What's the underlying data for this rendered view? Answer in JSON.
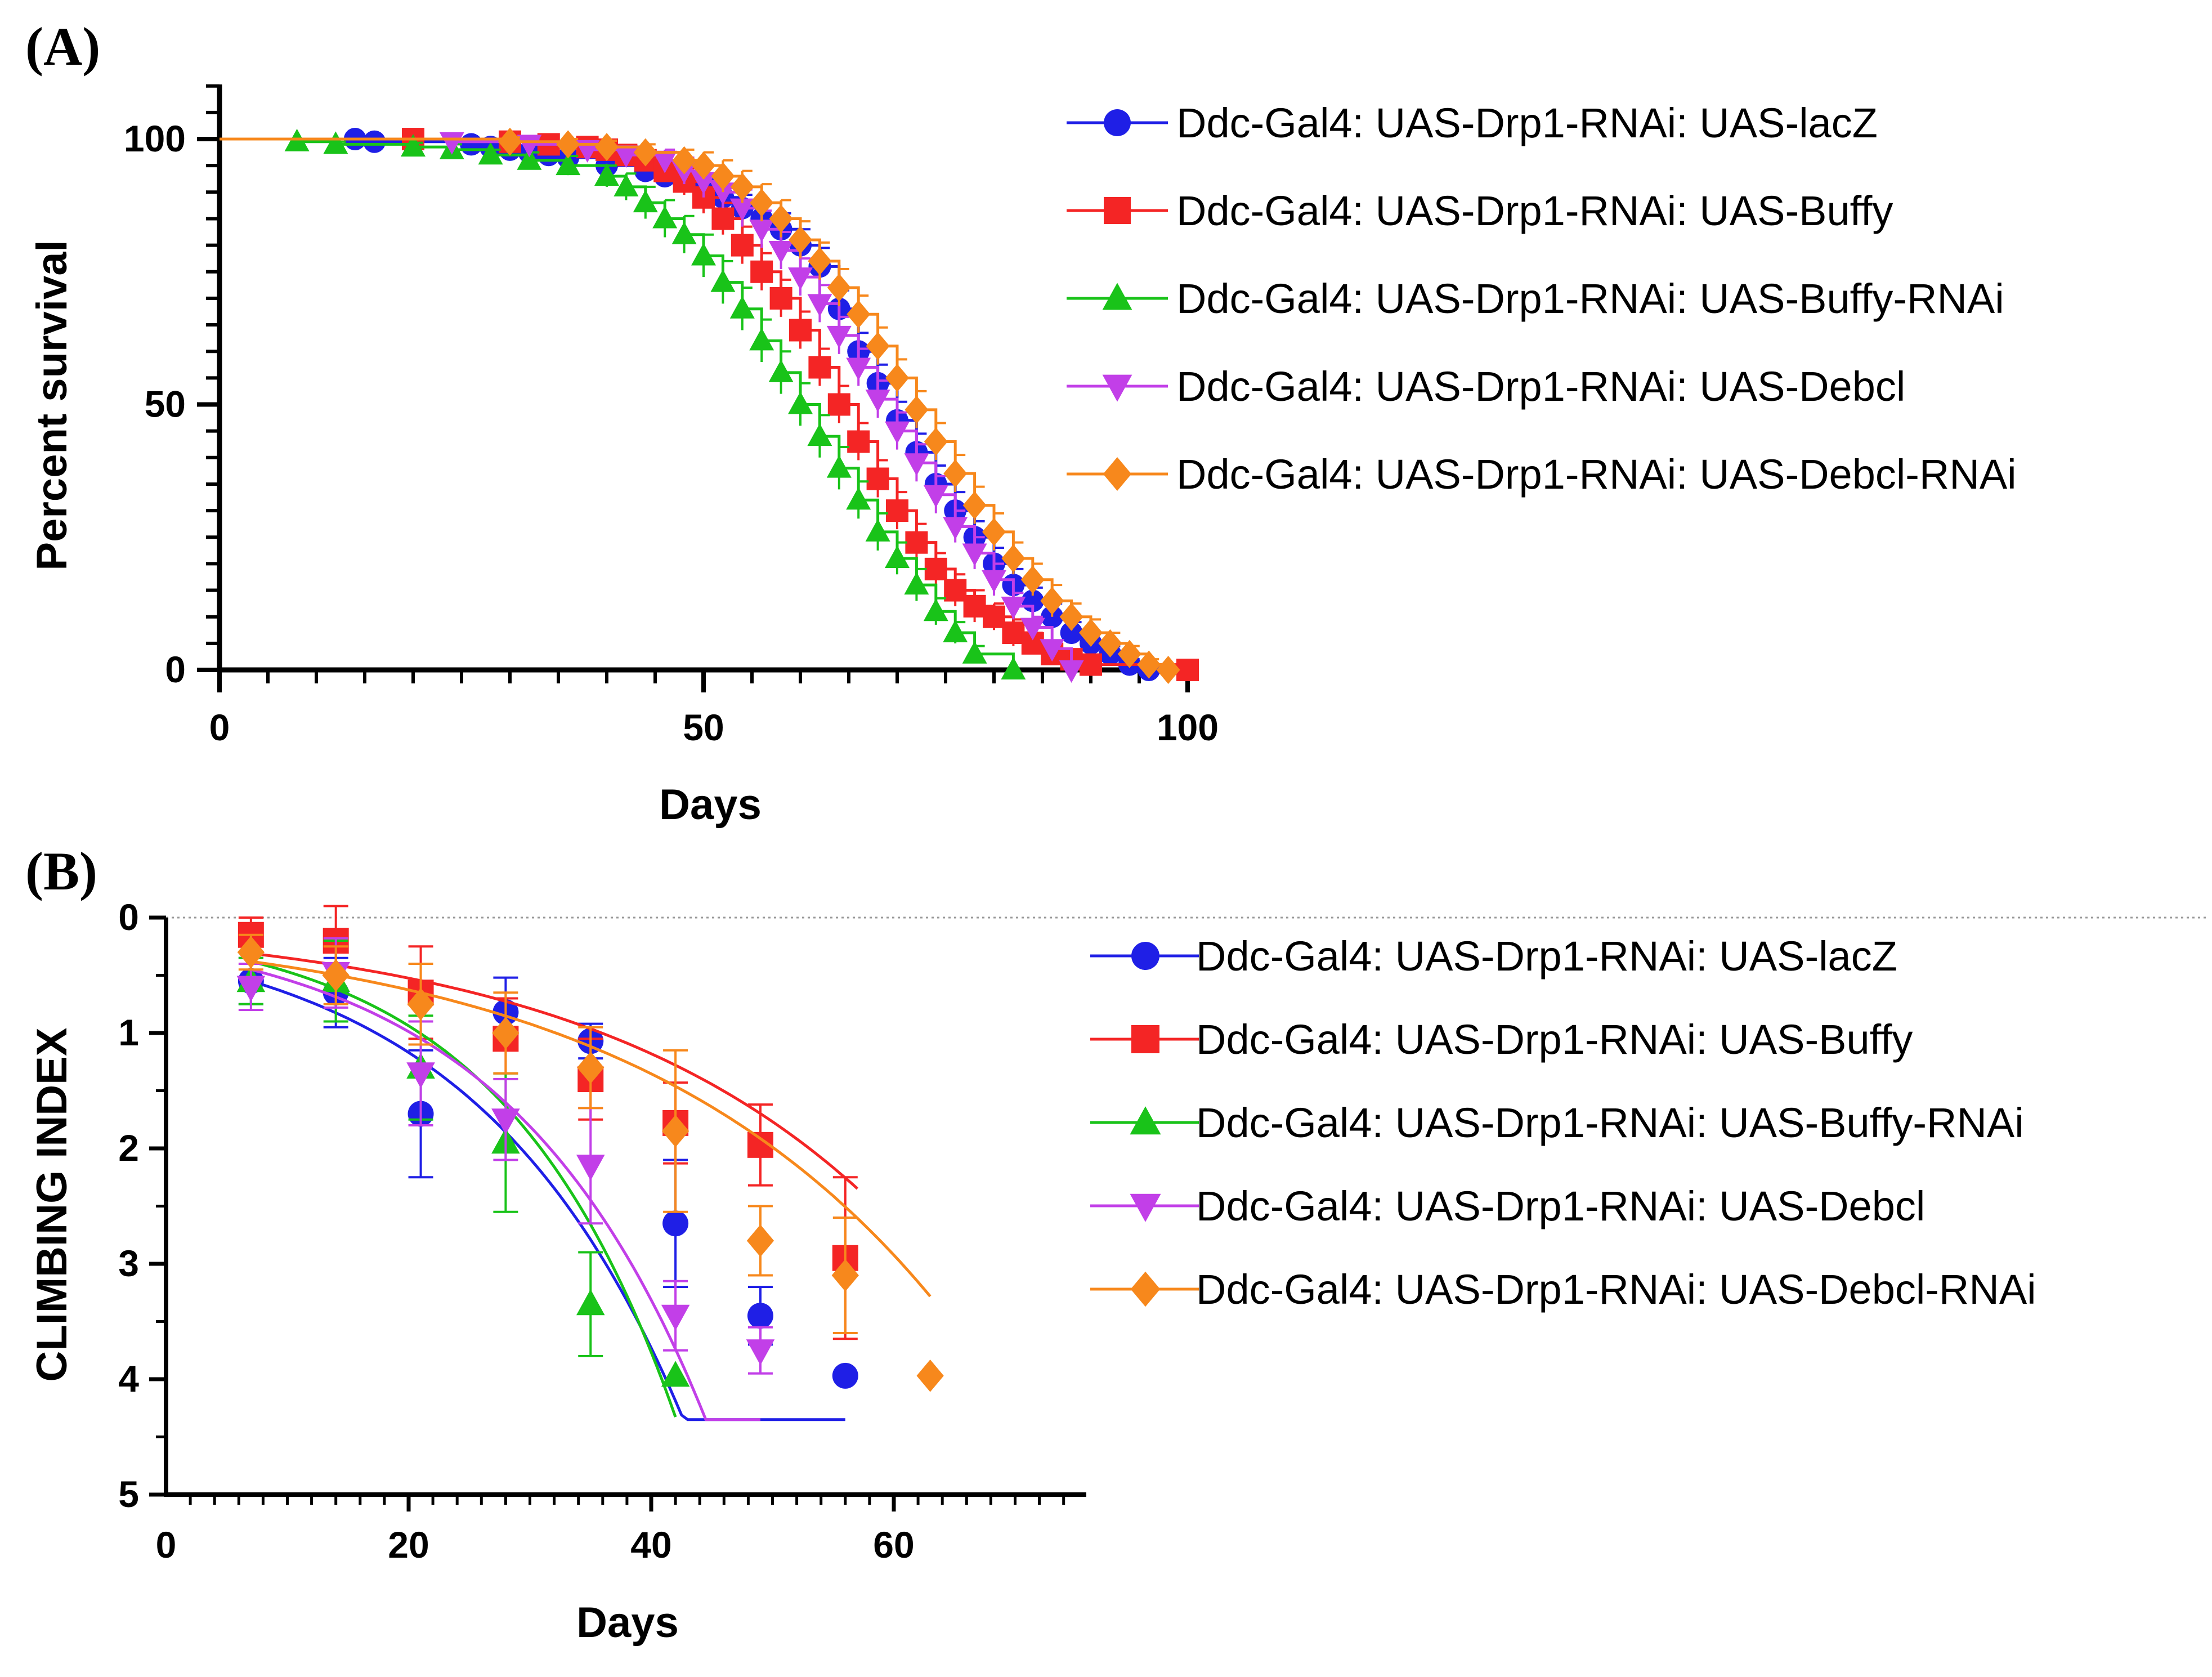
{
  "chart_data": [
    {
      "id": "A",
      "panel_label": "(A)",
      "type": "line",
      "subtype": "kaplan-meier-survival",
      "title": "",
      "xlabel": "Days",
      "ylabel": "Percent survival",
      "xlim": [
        0,
        100
      ],
      "ylim": [
        0,
        110
      ],
      "xticks": [
        0,
        50,
        100
      ],
      "yticks": [
        0,
        50,
        100
      ],
      "grid": false,
      "legend_position": "right",
      "series": [
        {
          "name": "Ddc-Gal4: UAS-Drp1-RNAi: UAS-lacZ",
          "color": "#1f1fe6",
          "marker": "circle",
          "x": [
            0,
            14,
            16,
            26,
            28,
            30,
            32,
            34,
            36,
            40,
            44,
            46,
            48,
            50,
            52,
            54,
            56,
            58,
            60,
            62,
            64,
            66,
            68,
            70,
            72,
            74,
            76,
            78,
            80,
            82,
            84,
            86,
            88,
            90,
            92,
            94,
            96
          ],
          "y": [
            100,
            100,
            99.5,
            99,
            98.5,
            98,
            97.5,
            97,
            96.5,
            95,
            94,
            93,
            92,
            90.5,
            89,
            87,
            85,
            83,
            80,
            76,
            68,
            60,
            54,
            47,
            41,
            35,
            30,
            25,
            20,
            16,
            13,
            10,
            7,
            5,
            3,
            1,
            0
          ],
          "err": [
            0,
            0.5,
            0.5,
            0.8,
            0.8,
            1,
            1,
            1,
            1,
            1.5,
            1.5,
            2,
            2,
            2,
            2.5,
            2.5,
            3,
            3,
            3,
            3.5,
            3.5,
            3.5,
            3.5,
            3.5,
            3.5,
            3.5,
            3.5,
            3,
            3,
            3,
            2.5,
            2.5,
            2,
            2,
            1.5,
            1,
            0
          ]
        },
        {
          "name": "Ddc-Gal4: UAS-Drp1-RNAi: UAS-Buffy",
          "color": "#f42525",
          "marker": "square",
          "x": [
            0,
            20,
            30,
            34,
            38,
            40,
            42,
            44,
            46,
            48,
            50,
            52,
            54,
            56,
            58,
            60,
            62,
            64,
            66,
            68,
            70,
            72,
            74,
            76,
            78,
            80,
            82,
            84,
            86,
            88,
            90,
            100
          ],
          "y": [
            100,
            100,
            99.5,
            99,
            98.5,
            98,
            97,
            96,
            94,
            92,
            89,
            85,
            80,
            75,
            70,
            64,
            57,
            50,
            43,
            36,
            30,
            24,
            19,
            15,
            12,
            10,
            7,
            5,
            3,
            2,
            1,
            0
          ],
          "err": [
            0,
            0.5,
            0.8,
            1,
            1,
            1.2,
            1.5,
            1.8,
            2,
            2.5,
            3,
            3,
            3.5,
            3.5,
            3.5,
            3.5,
            3.5,
            3.5,
            3.5,
            3.5,
            3.5,
            3.5,
            3,
            3,
            3,
            2.5,
            2.5,
            2,
            2,
            1.5,
            1,
            0
          ]
        },
        {
          "name": "Ddc-Gal4: UAS-Drp1-RNAi: UAS-Buffy-RNAi",
          "color": "#19c319",
          "marker": "triangle-up",
          "x": [
            0,
            8,
            12,
            20,
            24,
            28,
            32,
            36,
            40,
            42,
            44,
            46,
            48,
            50,
            52,
            54,
            56,
            58,
            60,
            62,
            64,
            66,
            68,
            70,
            72,
            74,
            76,
            78,
            82
          ],
          "y": [
            100,
            99.5,
            99,
            98.5,
            98,
            97,
            96,
            95,
            93,
            91,
            88,
            85,
            82,
            78,
            73,
            68,
            62,
            56,
            50,
            44,
            38,
            32,
            26,
            21,
            16,
            11,
            7,
            3,
            0
          ],
          "err": [
            0,
            0.5,
            0.5,
            0.8,
            1,
            1,
            1.5,
            1.8,
            2,
            2.5,
            3,
            3.5,
            3.5,
            4,
            4,
            4,
            4,
            4,
            4,
            4,
            4,
            3.5,
            3.5,
            3,
            3,
            2.5,
            2,
            1.5,
            0
          ]
        },
        {
          "name": "Ddc-Gal4: UAS-Drp1-RNAi: UAS-Debcl",
          "color": "#c23fe8",
          "marker": "triangle-down",
          "x": [
            0,
            24,
            32,
            38,
            42,
            46,
            48,
            50,
            52,
            54,
            56,
            58,
            60,
            62,
            64,
            66,
            68,
            70,
            72,
            74,
            76,
            78,
            80,
            82,
            84,
            86,
            88
          ],
          "y": [
            100,
            99.5,
            99,
            98,
            97,
            96,
            94,
            92,
            90,
            87,
            83,
            79,
            74,
            69,
            63,
            57,
            51,
            45,
            39,
            33,
            27,
            22,
            17,
            12,
            8,
            4,
            0
          ],
          "err": [
            0,
            0.5,
            0.8,
            1,
            1.5,
            2,
            2.5,
            3,
            3,
            3.5,
            3.5,
            3.5,
            3.5,
            3.5,
            3.5,
            3.5,
            3.5,
            3.5,
            3.5,
            3.5,
            3,
            3,
            3,
            2.5,
            2,
            1.5,
            0
          ]
        },
        {
          "name": "Ddc-Gal4: UAS-Drp1-RNAi: UAS-Debcl-RNAi",
          "color": "#f7881c",
          "marker": "diamond",
          "x": [
            0,
            30,
            36,
            40,
            44,
            48,
            50,
            52,
            54,
            56,
            58,
            60,
            62,
            64,
            66,
            68,
            70,
            72,
            74,
            76,
            78,
            80,
            82,
            84,
            86,
            88,
            90,
            92,
            94,
            96,
            98
          ],
          "y": [
            100,
            99.5,
            99,
            98.5,
            97.5,
            96,
            95,
            93,
            91,
            88,
            85,
            81,
            77,
            72,
            67,
            61,
            55,
            49,
            43,
            37,
            31,
            26,
            21,
            17,
            13,
            10,
            7,
            5,
            3,
            1,
            0
          ],
          "err": [
            0,
            0.8,
            1,
            1.2,
            1.5,
            2,
            2.5,
            3,
            3,
            3.5,
            3.5,
            3.5,
            3.5,
            3.5,
            3.5,
            3.5,
            3.5,
            3.5,
            3.5,
            3.5,
            3.5,
            3.5,
            3,
            3,
            3,
            2.5,
            2.5,
            2,
            1.5,
            1,
            0
          ]
        }
      ]
    },
    {
      "id": "B",
      "panel_label": "(B)",
      "type": "scatter",
      "subtype": "climbing-index-with-fit",
      "title": "",
      "xlabel": "Days",
      "ylabel": "CLIMBING INDEX",
      "xlim": [
        0,
        75
      ],
      "ylim": [
        0,
        5
      ],
      "y_inverted": true,
      "xticks": [
        0,
        20,
        40,
        60
      ],
      "yticks": [
        0,
        1,
        2,
        3,
        4,
        5
      ],
      "grid": false,
      "zero_reference_line": true,
      "legend_position": "right",
      "series": [
        {
          "name": "Ddc-Gal4: UAS-Drp1-RNAi: UAS-lacZ",
          "color": "#1f1fe6",
          "marker": "circle",
          "x": [
            7,
            14,
            21,
            28,
            35,
            42,
            49,
            56
          ],
          "y": [
            0.55,
            0.65,
            1.7,
            0.82,
            1.07,
            2.65,
            3.45,
            3.97
          ],
          "err": [
            0.2,
            0.3,
            0.55,
            0.3,
            0.15,
            0.55,
            0.25,
            0
          ],
          "fit": {
            "a": 0.55,
            "b": 0.058,
            "x_end": 56
          }
        },
        {
          "name": "Ddc-Gal4: UAS-Drp1-RNAi: UAS-Buffy",
          "color": "#f42525",
          "marker": "square",
          "x": [
            7,
            14,
            21,
            28,
            35,
            42,
            49,
            56
          ],
          "y": [
            0.15,
            0.2,
            0.65,
            1.05,
            1.4,
            1.78,
            1.97,
            2.95
          ],
          "err": [
            0.15,
            0.3,
            0.4,
            0.35,
            0.35,
            0.35,
            0.35,
            0.7
          ],
          "fit": {
            "a": 0.31,
            "b": 0.0405,
            "x_end": 57
          }
        },
        {
          "name": "Ddc-Gal4: UAS-Drp1-RNAi: UAS-Buffy-RNAi",
          "color": "#19c319",
          "marker": "triangle-up",
          "x": [
            7,
            14,
            21,
            28,
            35,
            42
          ],
          "y": [
            0.55,
            0.55,
            1.3,
            1.95,
            3.35,
            3.97
          ],
          "err": [
            0.2,
            0.35,
            0.45,
            0.6,
            0.45,
            0
          ],
          "fit": {
            "a": 0.38,
            "b": 0.0695,
            "x_end": 42
          }
        },
        {
          "name": "Ddc-Gal4: UAS-Drp1-RNAi: UAS-Debcl",
          "color": "#c23fe8",
          "marker": "triangle-down",
          "x": [
            7,
            14,
            21,
            28,
            35,
            42,
            49
          ],
          "y": [
            0.6,
            0.48,
            1.35,
            1.75,
            2.15,
            3.45,
            3.75
          ],
          "err": [
            0.2,
            0.3,
            0.45,
            0.35,
            0.5,
            0.3,
            0.2
          ],
          "fit": {
            "a": 0.45,
            "b": 0.0605,
            "x_end": 49
          }
        },
        {
          "name": "Ddc-Gal4: UAS-Drp1-RNAi: UAS-Debcl-RNAi",
          "color": "#f7881c",
          "marker": "diamond",
          "x": [
            7,
            14,
            21,
            28,
            35,
            42,
            49,
            56,
            63
          ],
          "y": [
            0.3,
            0.5,
            0.75,
            1.0,
            1.3,
            1.85,
            2.8,
            3.1,
            3.97
          ],
          "err": [
            0.15,
            0.25,
            0.35,
            0.35,
            0.35,
            0.7,
            0.3,
            0.5,
            0
          ],
          "fit": {
            "a": 0.38,
            "b": 0.0385,
            "x_end": 63
          }
        }
      ]
    }
  ]
}
